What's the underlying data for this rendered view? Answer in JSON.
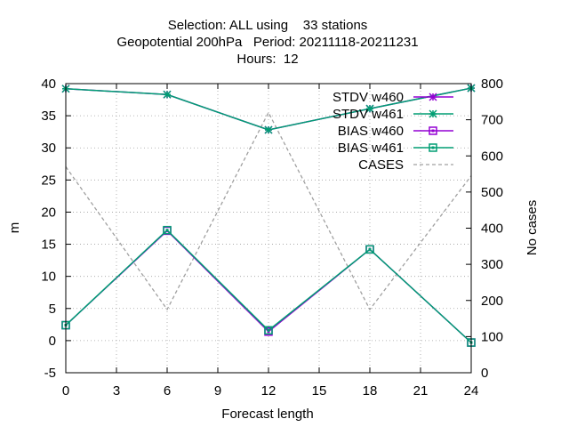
{
  "title_lines": [
    "Selection: ALL using    33 stations",
    "Geopotential 200hPa   Period: 20211118-20211231",
    "Hours:  12"
  ],
  "chart_data": {
    "type": "line",
    "x": [
      0,
      6,
      12,
      18,
      24
    ],
    "xlabel": "Forecast length",
    "ylabel": "m",
    "y2label": "No cases",
    "xlim": [
      0,
      24
    ],
    "ylim": [
      -5,
      40
    ],
    "y2lim": [
      0,
      800
    ],
    "xticks": [
      "0",
      "3",
      "6",
      "9",
      "12",
      "15",
      "18",
      "21",
      "24"
    ],
    "yticks": [
      "-5",
      "0",
      "5",
      "10",
      "15",
      "20",
      "25",
      "30",
      "35",
      "40"
    ],
    "y2ticks": [
      "0",
      "100",
      "200",
      "300",
      "400",
      "500",
      "600",
      "700",
      "800"
    ],
    "grid": true,
    "legend_position": "top-right",
    "series": [
      {
        "name": "STDV w460",
        "axis": "y1",
        "color": "#9400d3",
        "marker": "star",
        "dash": "solid",
        "values": [
          39.2,
          38.3,
          32.8,
          36.1,
          39.3
        ]
      },
      {
        "name": "STDV w461",
        "axis": "y1",
        "color": "#009e73",
        "marker": "star",
        "dash": "solid",
        "values": [
          39.2,
          38.3,
          32.8,
          36.1,
          39.3
        ]
      },
      {
        "name": "BIAS w460",
        "axis": "y1",
        "color": "#9400d3",
        "marker": "square",
        "dash": "solid",
        "values": [
          2.4,
          17.1,
          1.4,
          14.2,
          -0.3
        ]
      },
      {
        "name": "BIAS w461",
        "axis": "y1",
        "color": "#009e73",
        "marker": "square",
        "dash": "solid",
        "values": [
          2.4,
          17.2,
          1.6,
          14.2,
          -0.3
        ]
      },
      {
        "name": "CASES",
        "axis": "y2",
        "color": "#a0a0a0",
        "marker": "none",
        "dash": "dashed",
        "values": [
          570,
          175,
          720,
          175,
          545
        ]
      }
    ]
  }
}
